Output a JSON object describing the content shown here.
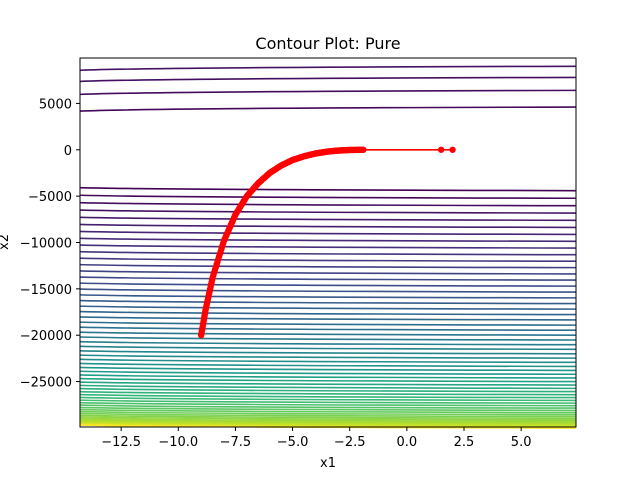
{
  "chart_data": {
    "type": "contour",
    "title": "Contour Plot: Pure",
    "xlabel": "x1",
    "ylabel": "x2",
    "xlim": [
      -14.3,
      7.4
    ],
    "ylim": [
      -29900,
      9900
    ],
    "xticks": [
      -12.5,
      -10.0,
      -7.5,
      -5.0,
      -2.5,
      0.0,
      2.5,
      5.0
    ],
    "xtick_labels": [
      "−12.5",
      "−10.0",
      "−7.5",
      "−5.0",
      "−2.5",
      "0.0",
      "2.5",
      "5.0"
    ],
    "yticks": [
      5000,
      0,
      -5000,
      -10000,
      -15000,
      -20000,
      -25000
    ],
    "ytick_labels": [
      "5000",
      "0",
      "−5000",
      "−10000",
      "−15000",
      "−20000",
      "−25000"
    ],
    "colormap": "viridis",
    "contour_levels": {
      "upper": [
        4500,
        6300,
        7700,
        8900
      ],
      "lower_start": -4300,
      "lower_step_count": 60
    },
    "path": {
      "color": "#ff0000",
      "marker": "circle",
      "start": [
        2.0,
        0
      ],
      "points": [
        [
          2.0,
          0
        ],
        [
          1.5,
          0
        ],
        [
          -1.9,
          0
        ],
        [
          -2.5,
          -20
        ],
        [
          -3.0,
          -80
        ],
        [
          -3.5,
          -200
        ],
        [
          -4.0,
          -400
        ],
        [
          -4.5,
          -700
        ],
        [
          -5.0,
          -1100
        ],
        [
          -5.5,
          -1700
        ],
        [
          -6.0,
          -2500
        ],
        [
          -6.5,
          -3600
        ],
        [
          -7.0,
          -5000
        ],
        [
          -7.5,
          -7000
        ],
        [
          -8.0,
          -9800
        ],
        [
          -8.5,
          -13800
        ],
        [
          -8.8,
          -17200
        ],
        [
          -9.0,
          -20000
        ]
      ]
    }
  }
}
